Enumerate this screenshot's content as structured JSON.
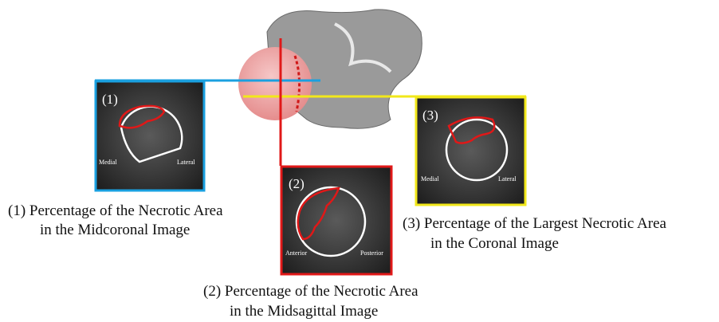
{
  "panels": [
    {
      "label": "(1)",
      "left": "Medial",
      "right": "Lateral",
      "caption": [
        "(1) Percentage of the Necrotic Area",
        "in the Midcoronal Image"
      ]
    },
    {
      "label": "(2)",
      "left": "Anterior",
      "right": "Posterior",
      "caption": [
        "(2) Percentage of the Necrotic Area",
        "in the Midsagittal Image"
      ]
    },
    {
      "label": "(3)",
      "left": "Medial",
      "right": "Lateral",
      "caption": [
        "(3) Percentage of the Largest Necrotic Area",
        "in the Coronal Image"
      ]
    }
  ]
}
